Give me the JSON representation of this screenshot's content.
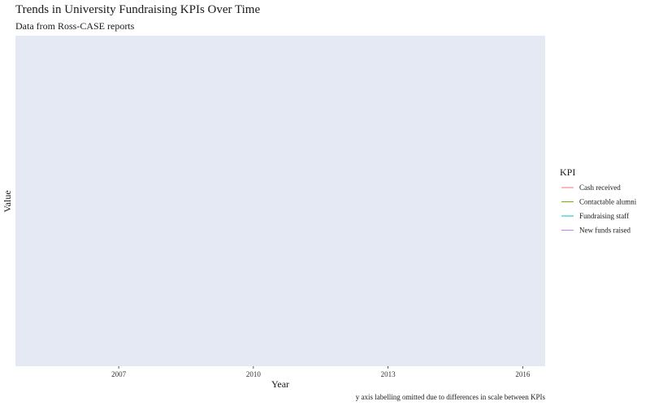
{
  "chart_data": {
    "type": "line",
    "title": "Trends in University Fundraising KPIs Over Time",
    "subtitle": "Data from Ross-CASE reports",
    "xlabel": "Year",
    "ylabel": "Value",
    "caption": "y axis labelling omitted due to differences in scale between KPIs",
    "x_ticks": [
      "2007",
      "2010",
      "2013",
      "2016"
    ],
    "xlim": [
      2004.7,
      2016.5
    ],
    "ylim": [
      0,
      1
    ],
    "grid": false,
    "panel_color": "#E4E9F3",
    "legend": {
      "title": "KPI",
      "position": "right"
    },
    "series": [
      {
        "name": "Cash received",
        "color": "#F8766D",
        "values": []
      },
      {
        "name": "Contactable alumni",
        "color": "#7CAE00",
        "values": []
      },
      {
        "name": "Fundraising staff",
        "color": "#00BFC4",
        "values": []
      },
      {
        "name": "New funds raised",
        "color": "#C77CFF",
        "values": []
      }
    ]
  }
}
